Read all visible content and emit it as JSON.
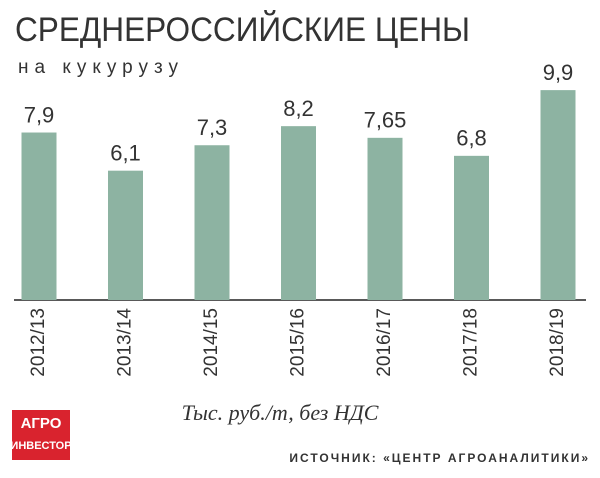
{
  "chart_data": {
    "type": "bar",
    "title": "СРЕДНЕРОССИЙСКИЕ ЦЕНЫ",
    "subtitle": "на кукурузу",
    "categories": [
      "2012/13",
      "2013/14",
      "2014/15",
      "2015/16",
      "2016/17",
      "2017/18",
      "2018/19"
    ],
    "values": [
      7.9,
      6.1,
      7.3,
      8.2,
      7.65,
      6.8,
      9.9
    ],
    "value_labels": [
      "7,9",
      "6,1",
      "7,3",
      "8,2",
      "7,65",
      "6,8",
      "9,9"
    ],
    "color": "#8db3a2",
    "ylim": [
      0,
      10
    ],
    "note": "Тыс. руб./т, без НДС",
    "source": "ИСТОЧНИК: «ЦЕНТР АГРОАНАЛИТИКИ»",
    "logo": [
      "АГРО",
      "ИНВЕСТОР"
    ]
  }
}
